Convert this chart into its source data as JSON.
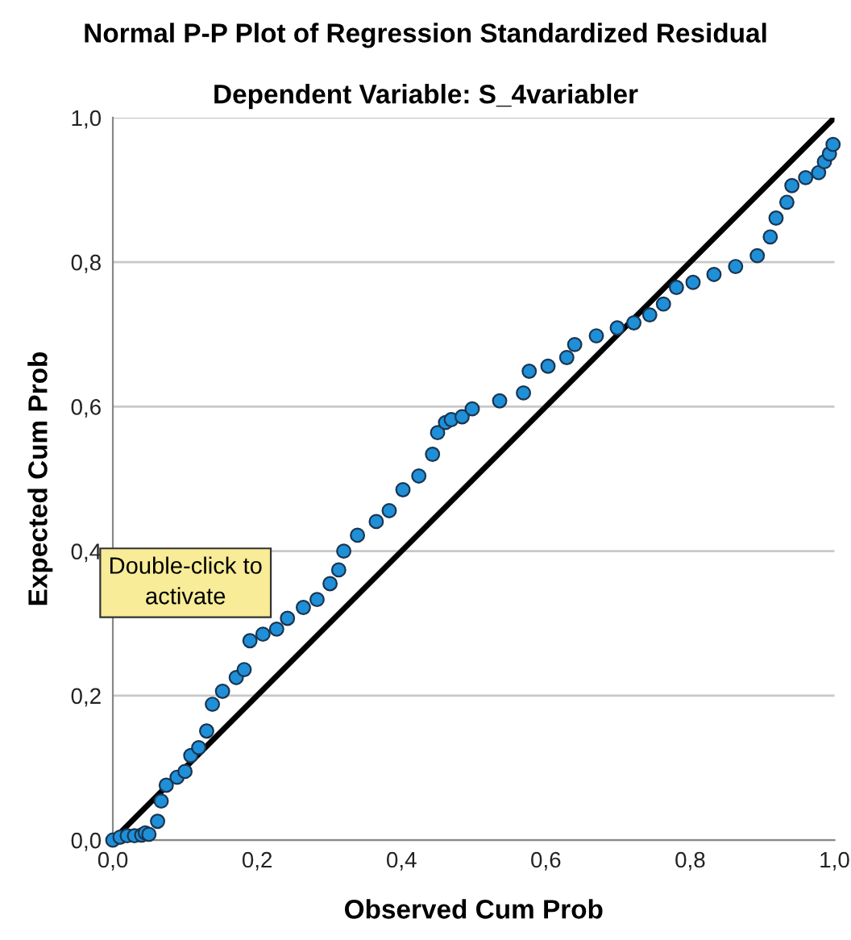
{
  "chart_data": {
    "type": "scatter",
    "title": "Normal P-P Plot of Regression Standardized Residual",
    "subtitle": "Dependent Variable: S_4variabler",
    "xlabel": "Observed Cum Prob",
    "ylabel": "Expected Cum Prob",
    "xlim": [
      0,
      1
    ],
    "ylim": [
      0,
      1
    ],
    "xticks": [
      {
        "value": 0,
        "label": "0,0"
      },
      {
        "value": 0.2,
        "label": "0,2"
      },
      {
        "value": 0.4,
        "label": "0,4"
      },
      {
        "value": 0.6,
        "label": "0,6"
      },
      {
        "value": 0.8,
        "label": "0,8"
      },
      {
        "value": 1,
        "label": "1,0"
      }
    ],
    "yticks": [
      {
        "value": 0,
        "label": "0,0"
      },
      {
        "value": 0.2,
        "label": "0,2"
      },
      {
        "value": 0.4,
        "label": "0,4"
      },
      {
        "value": 0.6,
        "label": "0,6"
      },
      {
        "value": 0.8,
        "label": "0,8"
      },
      {
        "value": 1,
        "label": "1,0"
      }
    ],
    "grid": "y",
    "annotations": [
      "Double-click to\nactivate"
    ],
    "series": [
      {
        "type": "scatter",
        "marker": "circle",
        "color": "#1f8fd8",
        "x": [
          0.0,
          0.01,
          0.02,
          0.03,
          0.04,
          0.045,
          0.05,
          0.062,
          0.067,
          0.074,
          0.089,
          0.1,
          0.108,
          0.119,
          0.13,
          0.138,
          0.152,
          0.171,
          0.182,
          0.19,
          0.208,
          0.227,
          0.242,
          0.264,
          0.283,
          0.301,
          0.313,
          0.32,
          0.339,
          0.365,
          0.383,
          0.402,
          0.424,
          0.443,
          0.45,
          0.461,
          0.469,
          0.484,
          0.498,
          0.536,
          0.569,
          0.577,
          0.603,
          0.629,
          0.64,
          0.67,
          0.699,
          0.722,
          0.744,
          0.763,
          0.781,
          0.804,
          0.833,
          0.863,
          0.893,
          0.911,
          0.919,
          0.934,
          0.941,
          0.96,
          0.978,
          0.986,
          0.993,
          0.998
        ],
        "values": [
          0.0,
          0.004,
          0.006,
          0.006,
          0.007,
          0.01,
          0.008,
          0.026,
          0.054,
          0.076,
          0.087,
          0.095,
          0.117,
          0.128,
          0.151,
          0.188,
          0.206,
          0.225,
          0.236,
          0.276,
          0.285,
          0.292,
          0.307,
          0.322,
          0.333,
          0.355,
          0.374,
          0.4,
          0.422,
          0.441,
          0.456,
          0.485,
          0.504,
          0.534,
          0.564,
          0.578,
          0.582,
          0.586,
          0.597,
          0.608,
          0.619,
          0.649,
          0.656,
          0.668,
          0.686,
          0.698,
          0.709,
          0.716,
          0.727,
          0.742,
          0.765,
          0.772,
          0.783,
          0.794,
          0.809,
          0.835,
          0.861,
          0.883,
          0.906,
          0.917,
          0.924,
          0.939,
          0.95,
          0.963
        ]
      },
      {
        "type": "line",
        "color": "#000000",
        "x": [
          0,
          1
        ],
        "values": [
          0,
          1
        ]
      }
    ]
  }
}
